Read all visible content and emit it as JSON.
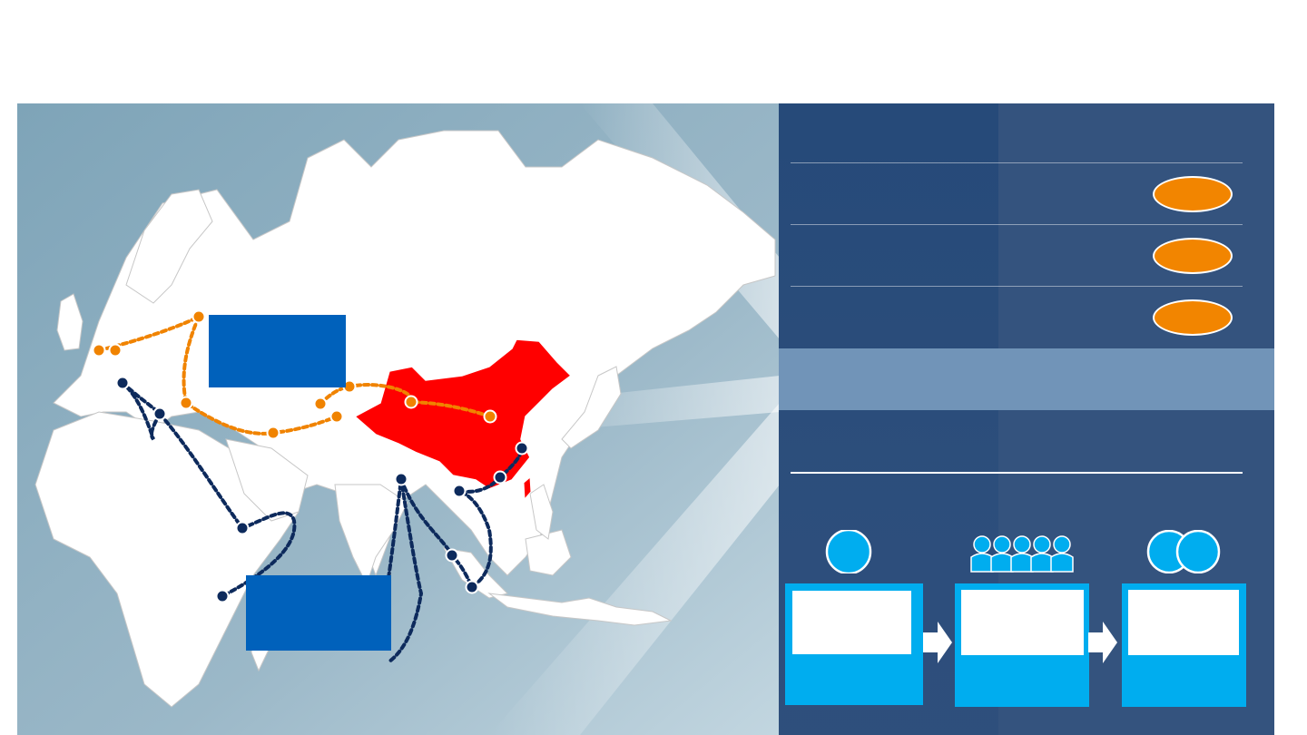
{
  "map": {
    "background_top": "#7da3b7",
    "background_bottom": "#a9c3d1",
    "land_color": "#ffffff",
    "border_color": "#bdbdbd",
    "china_color": "#ff0000",
    "overland_route_color": "#f08300",
    "maritime_route_color": "#0d2a5c",
    "label_boxes": [
      {
        "name": "overland-route-label",
        "text": ""
      },
      {
        "name": "maritime-route-label",
        "text": ""
      }
    ]
  },
  "panel": {
    "background": "#34537e",
    "rows": [
      {
        "label": "",
        "badge": ""
      },
      {
        "label": "",
        "badge": ""
      },
      {
        "label": "",
        "badge": ""
      }
    ],
    "badge_color": "#f28500",
    "highlight": "",
    "section_title": "",
    "steps": [
      {
        "icon": "single-person-icon",
        "title": "",
        "caption": ""
      },
      {
        "icon": "group-people-icon",
        "title": "",
        "caption": ""
      },
      {
        "icon": "two-people-icon",
        "title": "",
        "caption": ""
      }
    ],
    "step_color": "#00adef"
  }
}
